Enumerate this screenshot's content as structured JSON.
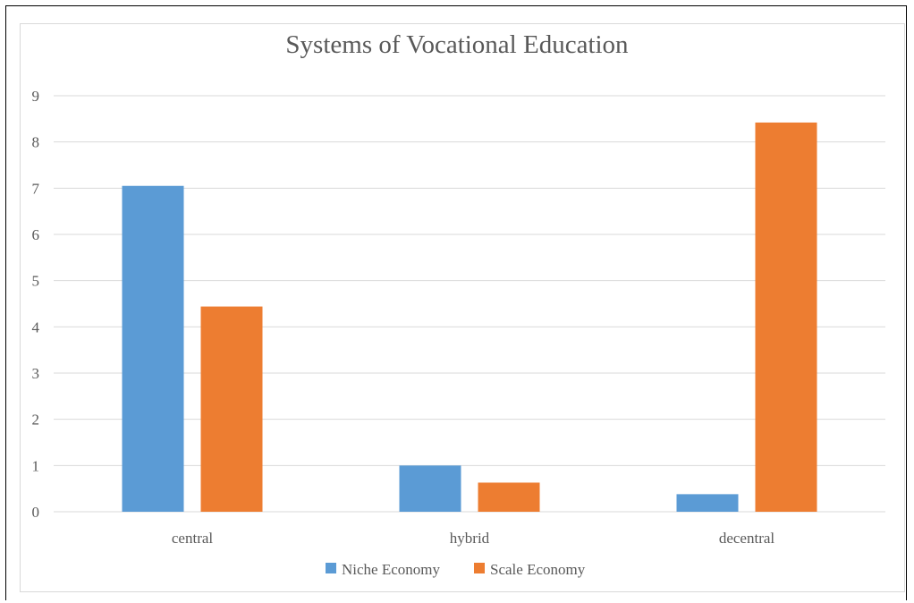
{
  "chart_data": {
    "type": "bar",
    "title": "Systems of Vocational Education",
    "categories": [
      "central",
      "hybrid",
      "decentral"
    ],
    "series": [
      {
        "name": "Niche Economy",
        "color": "#5b9bd5",
        "values": [
          7.05,
          1.0,
          0.38
        ]
      },
      {
        "name": "Scale Economy",
        "color": "#ed7d31",
        "values": [
          4.44,
          0.63,
          8.42
        ]
      }
    ],
    "ylim": [
      0,
      9
    ],
    "yticks": [
      "0",
      "1",
      "2",
      "3",
      "4",
      "5",
      "6",
      "7",
      "8",
      "9"
    ],
    "grid": true,
    "legend_position": "bottom"
  }
}
